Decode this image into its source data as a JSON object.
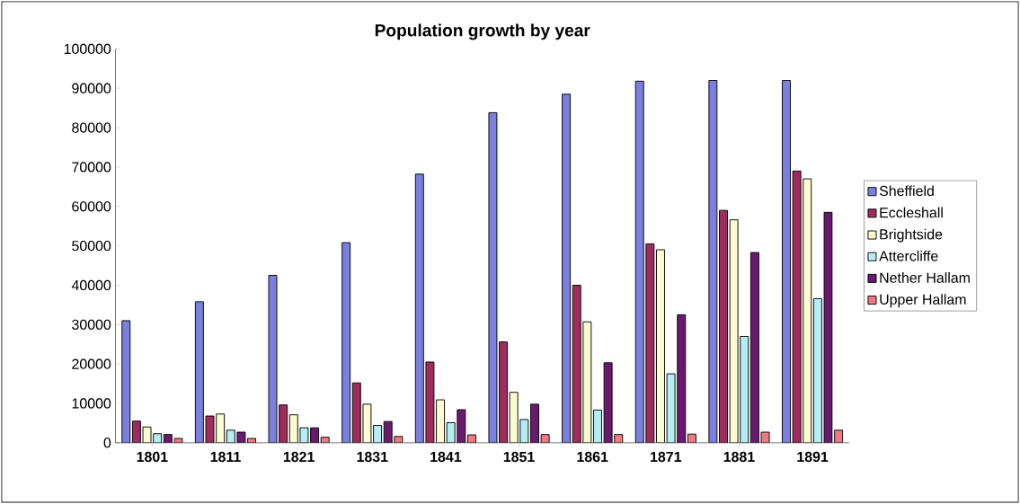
{
  "chart_data": {
    "type": "bar",
    "title": "Population growth by year",
    "categories": [
      "1801",
      "1811",
      "1821",
      "1831",
      "1841",
      "1851",
      "1861",
      "1871",
      "1881",
      "1891"
    ],
    "series": [
      {
        "name": "Sheffield",
        "color": "#7a7fe0",
        "values": [
          31000,
          35800,
          42500,
          50800,
          68200,
          83800,
          88500,
          91800,
          92000,
          92000
        ]
      },
      {
        "name": "Eccleshall",
        "color": "#9e2d5c",
        "values": [
          5500,
          6800,
          9600,
          15200,
          20500,
          25600,
          40000,
          50500,
          59000,
          69000
        ]
      },
      {
        "name": "Brightside",
        "color": "#fcfcd0",
        "values": [
          4000,
          7300,
          7100,
          9800,
          10900,
          12800,
          30700,
          49000,
          56600,
          67000
        ]
      },
      {
        "name": "Attercliffe",
        "color": "#b6ecf4",
        "values": [
          2300,
          3200,
          3800,
          4400,
          5100,
          5900,
          8300,
          17500,
          27000,
          36600
        ]
      },
      {
        "name": "Nether Hallam",
        "color": "#6a1a6e",
        "values": [
          2100,
          2700,
          3800,
          5400,
          8400,
          9800,
          20300,
          32500,
          48300,
          58500
        ]
      },
      {
        "name": "Upper Hallam",
        "color": "#f07a82",
        "values": [
          1100,
          1100,
          1400,
          1600,
          2000,
          2100,
          2100,
          2200,
          2700,
          3200
        ]
      }
    ],
    "ylim": [
      0,
      100000
    ],
    "yticks": [
      0,
      10000,
      20000,
      30000,
      40000,
      50000,
      60000,
      70000,
      80000,
      90000,
      100000
    ],
    "grid": false,
    "legend": "right"
  }
}
